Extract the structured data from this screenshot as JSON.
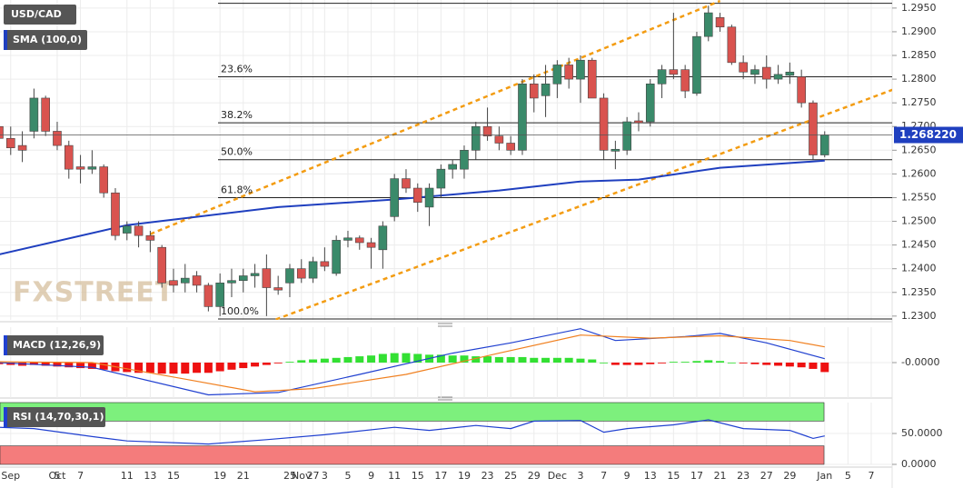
{
  "chart_data": [
    {
      "type": "candlestick",
      "title": "USD/CAD",
      "indicator": "SMA (100,0)",
      "watermark": "FXSTREET",
      "up_color": "#3a8a6a",
      "down_color": "#d9534f",
      "ohlc": [
        [
          1.27,
          1.273,
          1.266,
          1.2675
        ],
        [
          1.2675,
          1.27,
          1.264,
          1.2655
        ],
        [
          1.266,
          1.269,
          1.2625,
          1.265
        ],
        [
          1.269,
          1.278,
          1.2675,
          1.276
        ],
        [
          1.276,
          1.2765,
          1.268,
          1.269
        ],
        [
          1.269,
          1.271,
          1.265,
          1.266
        ],
        [
          1.266,
          1.267,
          1.259,
          1.261
        ],
        [
          1.2615,
          1.264,
          1.258,
          1.261
        ],
        [
          1.261,
          1.265,
          1.26,
          1.2615
        ],
        [
          1.2615,
          1.262,
          1.255,
          1.256
        ],
        [
          1.256,
          1.257,
          1.246,
          1.247
        ],
        [
          1.2475,
          1.25,
          1.246,
          1.249
        ],
        [
          1.249,
          1.25,
          1.2445,
          1.247
        ],
        [
          1.247,
          1.248,
          1.2435,
          1.246
        ],
        [
          1.2445,
          1.245,
          1.236,
          1.237
        ],
        [
          1.2375,
          1.24,
          1.235,
          1.2365
        ],
        [
          1.237,
          1.241,
          1.235,
          1.238
        ],
        [
          1.2385,
          1.2395,
          1.235,
          1.2365
        ],
        [
          1.2365,
          1.237,
          1.231,
          1.232
        ],
        [
          1.232,
          1.239,
          1.23,
          1.237
        ],
        [
          1.237,
          1.24,
          1.234,
          1.2375
        ],
        [
          1.2375,
          1.24,
          1.235,
          1.2385
        ],
        [
          1.2385,
          1.241,
          1.236,
          1.239
        ],
        [
          1.24,
          1.243,
          1.23,
          1.236
        ],
        [
          1.236,
          1.2385,
          1.2345,
          1.2355
        ],
        [
          1.237,
          1.241,
          1.234,
          1.24
        ],
        [
          1.24,
          1.242,
          1.237,
          1.238
        ],
        [
          1.238,
          1.2425,
          1.237,
          1.2415
        ],
        [
          1.2415,
          1.2445,
          1.2395,
          1.2405
        ],
        [
          1.239,
          1.247,
          1.2385,
          1.246
        ],
        [
          1.246,
          1.248,
          1.2445,
          1.2465
        ],
        [
          1.2465,
          1.247,
          1.244,
          1.2455
        ],
        [
          1.2455,
          1.2465,
          1.24,
          1.2445
        ],
        [
          1.244,
          1.25,
          1.24,
          1.249
        ],
        [
          1.251,
          1.26,
          1.25,
          1.259
        ],
        [
          1.259,
          1.261,
          1.256,
          1.257
        ],
        [
          1.257,
          1.258,
          1.252,
          1.254
        ],
        [
          1.253,
          1.258,
          1.249,
          1.257
        ],
        [
          1.257,
          1.262,
          1.255,
          1.261
        ],
        [
          1.261,
          1.263,
          1.259,
          1.262
        ],
        [
          1.261,
          1.266,
          1.259,
          1.265
        ],
        [
          1.265,
          1.271,
          1.263,
          1.27
        ],
        [
          1.27,
          1.274,
          1.267,
          1.268
        ],
        [
          1.268,
          1.27,
          1.265,
          1.2665
        ],
        [
          1.2665,
          1.268,
          1.264,
          1.265
        ],
        [
          1.265,
          1.28,
          1.264,
          1.279
        ],
        [
          1.279,
          1.281,
          1.273,
          1.276
        ],
        [
          1.2765,
          1.283,
          1.272,
          1.279
        ],
        [
          1.279,
          1.284,
          1.276,
          1.283
        ],
        [
          1.283,
          1.2845,
          1.278,
          1.28
        ],
        [
          1.28,
          1.285,
          1.275,
          1.284
        ],
        [
          1.284,
          1.2845,
          1.276,
          1.276
        ],
        [
          1.276,
          1.277,
          1.263,
          1.265
        ],
        [
          1.2648,
          1.267,
          1.261,
          1.2652
        ],
        [
          1.265,
          1.272,
          1.264,
          1.271
        ],
        [
          1.2712,
          1.273,
          1.269,
          1.2708
        ],
        [
          1.271,
          1.28,
          1.27,
          1.279
        ],
        [
          1.279,
          1.283,
          1.276,
          1.282
        ],
        [
          1.282,
          1.294,
          1.28,
          1.281
        ],
        [
          1.282,
          1.283,
          1.276,
          1.2775
        ],
        [
          1.277,
          1.29,
          1.2765,
          1.289
        ],
        [
          1.289,
          1.2955,
          1.288,
          1.294
        ],
        [
          1.293,
          1.294,
          1.29,
          1.291
        ],
        [
          1.291,
          1.2915,
          1.283,
          1.2835
        ],
        [
          1.2835,
          1.285,
          1.28,
          1.2815
        ],
        [
          1.281,
          1.283,
          1.279,
          1.282
        ],
        [
          1.2825,
          1.285,
          1.278,
          1.28
        ],
        [
          1.28,
          1.283,
          1.279,
          1.281
        ],
        [
          1.2808,
          1.2835,
          1.279,
          1.2815
        ],
        [
          1.2805,
          1.282,
          1.274,
          1.275
        ],
        [
          1.275,
          1.2755,
          1.263,
          1.264
        ],
        [
          1.264,
          1.269,
          1.2635,
          1.26822
        ]
      ],
      "sma": {
        "color": "#1f3fbf",
        "x": [
          0,
          11,
          24,
          34,
          43,
          50,
          55,
          62,
          71
        ],
        "values": [
          1.243,
          1.2492,
          1.253,
          1.2546,
          1.2565,
          1.2584,
          1.2588,
          1.2613,
          1.2628
        ]
      },
      "channel": {
        "color": "#f39c12",
        "lines": [
          {
            "x": [
              13,
              62
            ],
            "values": [
              1.2473,
              1.2965
            ]
          },
          {
            "x": [
              23.8,
              82.9
            ],
            "values": [
              1.2293,
              1.2833
            ]
          }
        ]
      },
      "fib_levels": [
        {
          "value": 1.296
        },
        {
          "value": 1.2805,
          "label": "23.6%"
        },
        {
          "value": 1.2708,
          "label": "38.2%"
        },
        {
          "value": 1.263,
          "label": "50.0%"
        },
        {
          "value": 1.255,
          "label": "61.8%"
        },
        {
          "value": 1.2294,
          "label": "100.0%"
        }
      ],
      "last_price": {
        "value": 1.26822,
        "label": "1.268220",
        "color": "#1f3fbf"
      },
      "xlim": [
        0.08,
        76.8
      ],
      "ylim": [
        1.2292,
        1.2967
      ],
      "yticks": [
        {
          "value": 1.23,
          "label": "1.2300"
        },
        {
          "value": 1.235,
          "label": "1.2350"
        },
        {
          "value": 1.24,
          "label": "1.2400"
        },
        {
          "value": 1.245,
          "label": "1.2450"
        },
        {
          "value": 1.25,
          "label": "1.2500"
        },
        {
          "value": 1.255,
          "label": "1.2550"
        },
        {
          "value": 1.26,
          "label": "1.2600"
        },
        {
          "value": 1.265,
          "label": "1.2650"
        },
        {
          "value": 1.27,
          "label": "1.2700"
        },
        {
          "value": 1.275,
          "label": "1.2750"
        },
        {
          "value": 1.28,
          "label": "1.2800"
        },
        {
          "value": 1.285,
          "label": "1.2850"
        },
        {
          "value": 1.29,
          "label": "1.2900"
        },
        {
          "value": 1.295,
          "label": "1.2950"
        }
      ],
      "grid": true
    },
    {
      "type": "macd",
      "title": "MACD (12,26,9)",
      "histogram": {
        "up_color": "#33e033",
        "down_color": "#ee1111",
        "values": [
          -0.0002,
          -0.0003,
          -0.0004,
          -0.0003,
          -0.0004,
          -0.0005,
          -0.0006,
          -0.0007,
          -0.0008,
          -0.0009,
          -0.0011,
          -0.0012,
          -0.0013,
          -0.0013,
          -0.0014,
          -0.0014,
          -0.0014,
          -0.0013,
          -0.0013,
          -0.0011,
          -0.0009,
          -0.0007,
          -0.0005,
          -0.0003,
          -0.0001,
          0.0001,
          0.0003,
          0.0004,
          0.0005,
          0.0006,
          0.0007,
          0.0008,
          0.0009,
          0.0011,
          0.0012,
          0.0012,
          0.0011,
          0.001,
          0.001,
          0.0009,
          0.0009,
          0.0008,
          0.0008,
          0.0007,
          0.0007,
          0.0007,
          0.0006,
          0.0006,
          0.0006,
          0.0006,
          0.0005,
          0.0004,
          0.0,
          -0.0003,
          -0.0003,
          -0.0003,
          -0.0002,
          -0.0001,
          0.0001,
          0.0001,
          0.0002,
          0.0003,
          0.0002,
          0.0,
          -0.0001,
          -0.0002,
          -0.0003,
          -0.0004,
          -0.0005,
          -0.0006,
          -0.0008,
          -0.0012
        ]
      },
      "series": [
        {
          "color": "#2040d0",
          "x": [
            0,
            8,
            18,
            24,
            31,
            39,
            44,
            50,
            53,
            59,
            62,
            66,
            71
          ],
          "values": [
            0.0,
            -0.0006,
            -0.0041,
            -0.0038,
            -0.0015,
            0.0012,
            0.0025,
            0.0043,
            0.0028,
            0.0033,
            0.0037,
            0.0025,
            0.0005
          ]
        },
        {
          "color": "#f08020",
          "x": [
            0,
            8,
            16,
            22,
            27,
            35,
            43,
            50,
            56,
            62,
            68,
            71
          ],
          "values": [
            0.0001,
            0.0,
            -0.0021,
            -0.0037,
            -0.0033,
            -0.0015,
            0.0012,
            0.0035,
            0.0031,
            0.0034,
            0.0028,
            0.002
          ]
        }
      ],
      "ylim": [
        -0.0045,
        0.0045
      ],
      "yticks": [
        {
          "value": 0,
          "label": "-0.0000"
        }
      ],
      "grid": true
    },
    {
      "type": "rsi",
      "title": "RSI (14,70,30,1)",
      "bands": [
        {
          "range": [
            70,
            100
          ],
          "color": "#7df07d"
        },
        {
          "range": [
            0,
            30
          ],
          "color": "#f47c7c"
        }
      ],
      "series": [
        {
          "color": "#2040d0",
          "x": [
            0,
            3,
            8,
            11,
            18,
            23,
            28,
            34,
            37,
            41,
            44,
            46,
            50,
            52,
            54,
            58,
            61,
            64,
            68,
            70,
            71
          ],
          "values": [
            60,
            58,
            45,
            38,
            33,
            40,
            48,
            60,
            55,
            63,
            58,
            70,
            71,
            52,
            58,
            64,
            72,
            58,
            55,
            42,
            46
          ]
        }
      ],
      "ylim": [
        0,
        100
      ],
      "yticks": [
        {
          "value": 0,
          "label": "0.0000"
        },
        {
          "value": 50,
          "label": "50.0000"
        }
      ],
      "xticks": [
        {
          "value": 1,
          "label": "Sep"
        },
        {
          "value": 5,
          "label": "Oct"
        },
        5,
        7,
        11,
        13,
        15,
        19,
        21,
        25,
        27,
        {
          "value": 26,
          "label": "Nov"
        },
        {
          "value": 28,
          "label": "3"
        },
        {
          "value": 30,
          "label": "5"
        },
        {
          "value": 32,
          "label": "9"
        },
        {
          "value": 34,
          "label": "11"
        },
        {
          "value": 36,
          "label": "15"
        },
        {
          "value": 38,
          "label": "17"
        },
        {
          "value": 40,
          "label": "19"
        },
        {
          "value": 42,
          "label": "23"
        },
        {
          "value": 44,
          "label": "25"
        },
        {
          "value": 46,
          "label": "29"
        },
        {
          "value": 48,
          "label": "Dec"
        },
        {
          "value": 50,
          "label": "3"
        },
        {
          "value": 52,
          "label": "7"
        },
        {
          "value": 54,
          "label": "9"
        },
        {
          "value": 56,
          "label": "13"
        },
        {
          "value": 58,
          "label": "15"
        },
        {
          "value": 60,
          "label": "17"
        },
        {
          "value": 62,
          "label": "21"
        },
        {
          "value": 64,
          "label": "23"
        },
        {
          "value": 66,
          "label": "27"
        },
        {
          "value": 68,
          "label": "29"
        },
        {
          "value": 71,
          "label": "Jan"
        },
        {
          "value": 73,
          "label": "5"
        },
        {
          "value": 75,
          "label": "7"
        }
      ],
      "grid": true
    }
  ]
}
